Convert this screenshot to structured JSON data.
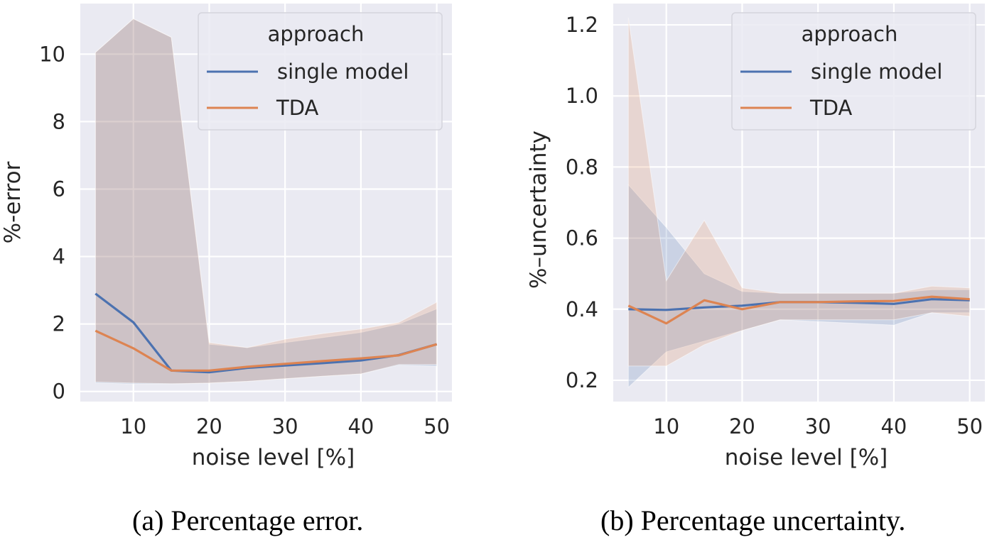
{
  "chart_data": [
    {
      "id": "a",
      "type": "line",
      "caption": "(a) Percentage error.",
      "xlabel": "noise level [%]",
      "ylabel": "%-error",
      "x": [
        5,
        10,
        15,
        20,
        25,
        30,
        35,
        40,
        45,
        50
      ],
      "xticks": [
        10,
        20,
        30,
        40,
        50
      ],
      "yticks": [
        0,
        2,
        4,
        6,
        8,
        10
      ],
      "xlim": [
        3,
        52
      ],
      "ylim": [
        -0.3,
        11.5
      ],
      "grid": true,
      "legend": {
        "title": "approach",
        "placement": "top-right",
        "entries": [
          "single model",
          "TDA"
        ]
      },
      "series": [
        {
          "name": "single model",
          "color": "#4c72b0",
          "values": [
            2.9,
            2.05,
            0.62,
            0.57,
            0.7,
            0.77,
            0.84,
            0.92,
            1.08,
            1.4
          ],
          "ci_lower": [
            0.25,
            0.22,
            0.22,
            0.25,
            0.3,
            0.38,
            0.45,
            0.52,
            0.78,
            0.75
          ],
          "ci_upper": [
            10.05,
            11.05,
            10.5,
            1.4,
            1.3,
            1.45,
            1.6,
            1.75,
            2.0,
            2.45
          ]
        },
        {
          "name": "TDA",
          "color": "#dd8452",
          "values": [
            1.8,
            1.28,
            0.62,
            0.62,
            0.73,
            0.82,
            0.9,
            0.98,
            1.07,
            1.4
          ],
          "ci_lower": [
            0.28,
            0.25,
            0.23,
            0.25,
            0.3,
            0.38,
            0.45,
            0.52,
            0.8,
            0.8
          ],
          "ci_upper": [
            10.05,
            11.05,
            10.5,
            1.45,
            1.3,
            1.55,
            1.72,
            1.85,
            2.05,
            2.65
          ]
        }
      ]
    },
    {
      "id": "b",
      "type": "line",
      "caption": "(b) Percentage uncertainty.",
      "xlabel": "noise level [%]",
      "ylabel": "%–uncertainty",
      "x": [
        5,
        10,
        15,
        20,
        25,
        30,
        35,
        40,
        45,
        50
      ],
      "xticks": [
        10,
        20,
        30,
        40,
        50
      ],
      "yticks": [
        0.2,
        0.4,
        0.6,
        0.8,
        1.0,
        1.2
      ],
      "xlim": [
        3,
        52
      ],
      "ylim": [
        0.14,
        1.26
      ],
      "grid": true,
      "legend": {
        "title": "approach",
        "placement": "top-right",
        "entries": [
          "single model",
          "TDA"
        ]
      },
      "series": [
        {
          "name": "single model",
          "color": "#4c72b0",
          "values": [
            0.4,
            0.398,
            0.405,
            0.41,
            0.42,
            0.42,
            0.418,
            0.415,
            0.428,
            0.425
          ],
          "ci_lower": [
            0.18,
            0.28,
            0.31,
            0.34,
            0.37,
            0.365,
            0.36,
            0.355,
            0.39,
            0.39
          ],
          "ci_upper": [
            0.75,
            0.63,
            0.5,
            0.45,
            0.445,
            0.445,
            0.445,
            0.445,
            0.455,
            0.455
          ]
        },
        {
          "name": "TDA",
          "color": "#dd8452",
          "values": [
            0.41,
            0.36,
            0.425,
            0.4,
            0.42,
            0.42,
            0.422,
            0.423,
            0.435,
            0.428
          ],
          "ci_lower": [
            0.24,
            0.24,
            0.3,
            0.34,
            0.37,
            0.37,
            0.37,
            0.37,
            0.39,
            0.38
          ],
          "ci_upper": [
            1.22,
            0.48,
            0.65,
            0.46,
            0.445,
            0.445,
            0.445,
            0.445,
            0.465,
            0.46
          ]
        }
      ]
    }
  ]
}
